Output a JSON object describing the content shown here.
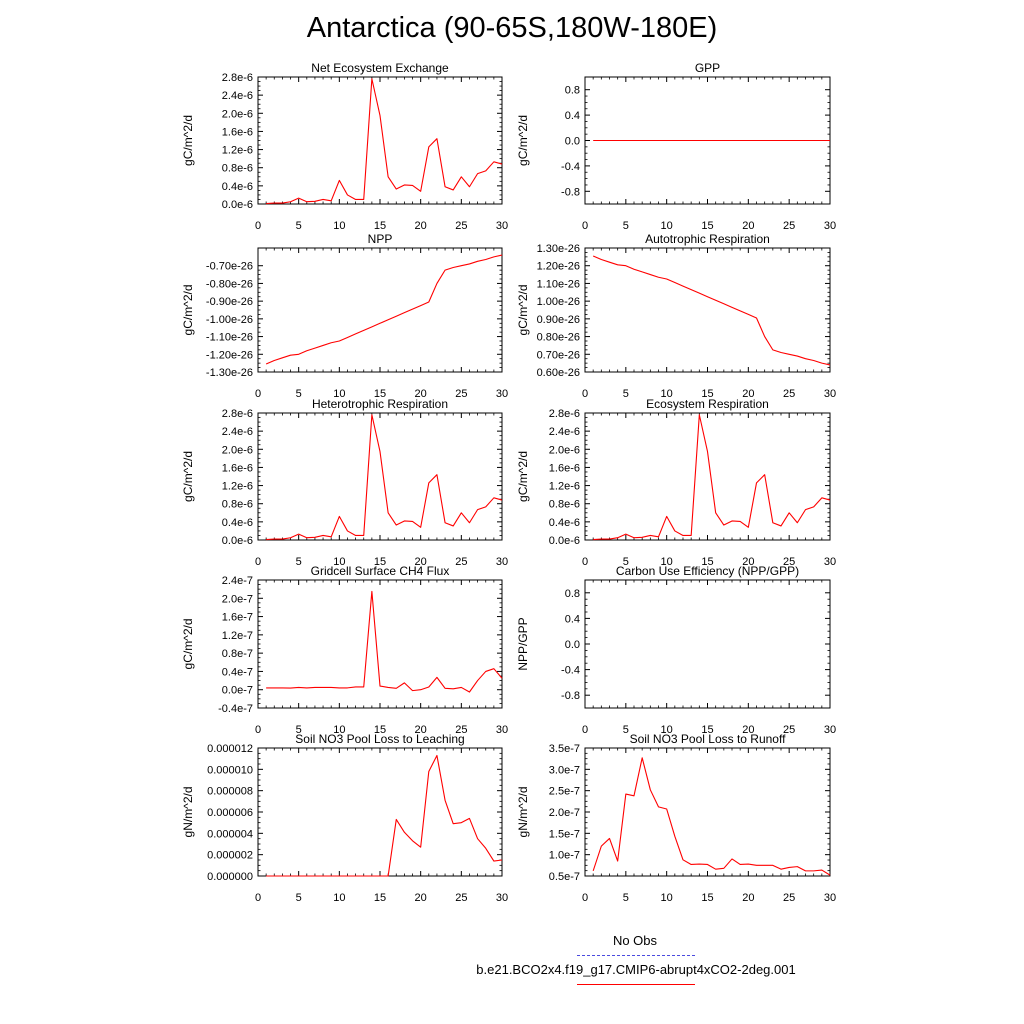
{
  "title": "Antarctica (90-65S,180W-180E)",
  "chart_data": [
    {
      "type": "line",
      "title": "Net Ecosystem Exchange",
      "ylabel": "gC/m^2/d",
      "xlim": [
        0,
        30
      ],
      "ylim": [
        0,
        2.8e-06
      ],
      "xticks": [
        0,
        5,
        10,
        15,
        20,
        25,
        30
      ],
      "yticks": [
        0,
        4e-07,
        8e-07,
        1.2e-06,
        1.6e-06,
        2e-06,
        2.4e-06,
        2.8e-06
      ],
      "yticklabels": [
        "0.0e-6",
        "0.4e-6",
        "0.8e-6",
        "1.2e-6",
        "1.6e-6",
        "2.0e-6",
        "2.4e-6",
        "2.8e-6"
      ],
      "x": [
        1,
        2,
        3,
        4,
        5,
        6,
        7,
        8,
        9,
        10,
        11,
        12,
        13,
        14,
        15,
        16,
        17,
        18,
        19,
        20,
        21,
        22,
        23,
        24,
        25,
        26,
        27,
        28,
        29,
        30
      ],
      "series": [
        {
          "values": [
            1e-08,
            2e-08,
            2e-08,
            5e-08,
            1.3e-07,
            5e-08,
            6e-08,
            1e-07,
            7e-08,
            5.2e-07,
            2e-07,
            1e-07,
            1e-07,
            2.76e-06,
            1.95e-06,
            6e-07,
            3.3e-07,
            4.2e-07,
            4.1e-07,
            2.8e-07,
            1.26e-06,
            1.44e-06,
            3.8e-07,
            3.1e-07,
            6e-07,
            3.8e-07,
            6.7e-07,
            7.3e-07,
            9.3e-07,
            8.8e-07
          ]
        }
      ]
    },
    {
      "type": "line",
      "title": "GPP",
      "ylabel": "gC/m^2/d",
      "xlim": [
        0,
        30
      ],
      "ylim": [
        -1,
        1
      ],
      "xticks": [
        0,
        5,
        10,
        15,
        20,
        25,
        30
      ],
      "yticks": [
        -0.8,
        -0.4,
        0,
        0.4,
        0.8
      ],
      "yticklabels": [
        "-0.8",
        "-0.4",
        "0.0",
        "0.4",
        "0.8"
      ],
      "x": [
        1,
        2,
        3,
        4,
        5,
        6,
        7,
        8,
        9,
        10,
        11,
        12,
        13,
        14,
        15,
        16,
        17,
        18,
        19,
        20,
        21,
        22,
        23,
        24,
        25,
        26,
        27,
        28,
        29,
        30
      ],
      "series": [
        {
          "values": [
            0,
            0,
            0,
            0,
            0,
            0,
            0,
            0,
            0,
            0,
            0,
            0,
            0,
            0,
            0,
            0,
            0,
            0,
            0,
            0,
            0,
            0,
            0,
            0,
            0,
            0,
            0,
            0,
            0,
            0
          ]
        }
      ]
    },
    {
      "type": "line",
      "title": "NPP",
      "ylabel": "gC/m^2/d",
      "xlim": [
        0,
        30
      ],
      "ylim": [
        -1.3e-26,
        -6e-27
      ],
      "xticks": [
        0,
        5,
        10,
        15,
        20,
        25,
        30
      ],
      "yticks": [
        -1.3e-26,
        -1.2e-26,
        -1.1e-26,
        -1e-26,
        -9e-27,
        -8e-27,
        -7e-27
      ],
      "yticklabels": [
        "-1.30e-26",
        "-1.20e-26",
        "-1.10e-26",
        "-1.00e-26",
        "-0.90e-26",
        "-0.80e-26",
        "-0.70e-26"
      ],
      "x": [
        1,
        2,
        3,
        4,
        5,
        6,
        7,
        8,
        9,
        10,
        11,
        12,
        13,
        14,
        15,
        16,
        17,
        18,
        19,
        20,
        21,
        22,
        23,
        24,
        25,
        26,
        27,
        28,
        29,
        30
      ],
      "series": [
        {
          "values": [
            -1.255e-26,
            -1.235e-26,
            -1.22e-26,
            -1.205e-26,
            -1.2e-26,
            -1.18e-26,
            -1.165e-26,
            -1.15e-26,
            -1.135e-26,
            -1.125e-26,
            -1.105e-26,
            -1.085e-26,
            -1.065e-26,
            -1.045e-26,
            -1.025e-26,
            -1.005e-26,
            -9.85e-27,
            -9.65e-27,
            -9.45e-27,
            -9.25e-27,
            -9.05e-27,
            -8e-27,
            -7.25e-27,
            -7.1e-27,
            -7e-27,
            -6.9e-27,
            -6.75e-27,
            -6.65e-27,
            -6.5e-27,
            -6.4e-27
          ]
        }
      ]
    },
    {
      "type": "line",
      "title": "Autotrophic Respiration",
      "ylabel": "gC/m^2/d",
      "xlim": [
        0,
        30
      ],
      "ylim": [
        6e-27,
        1.3e-26
      ],
      "xticks": [
        0,
        5,
        10,
        15,
        20,
        25,
        30
      ],
      "yticks": [
        6e-27,
        7e-27,
        8e-27,
        9e-27,
        1e-26,
        1.1e-26,
        1.2e-26,
        1.3e-26
      ],
      "yticklabels": [
        "0.60e-26",
        "0.70e-26",
        "0.80e-26",
        "0.90e-26",
        "1.00e-26",
        "1.10e-26",
        "1.20e-26",
        "1.30e-26"
      ],
      "x": [
        1,
        2,
        3,
        4,
        5,
        6,
        7,
        8,
        9,
        10,
        11,
        12,
        13,
        14,
        15,
        16,
        17,
        18,
        19,
        20,
        21,
        22,
        23,
        24,
        25,
        26,
        27,
        28,
        29,
        30
      ],
      "series": [
        {
          "values": [
            1.255e-26,
            1.235e-26,
            1.22e-26,
            1.205e-26,
            1.2e-26,
            1.18e-26,
            1.165e-26,
            1.15e-26,
            1.135e-26,
            1.125e-26,
            1.105e-26,
            1.085e-26,
            1.065e-26,
            1.045e-26,
            1.025e-26,
            1.005e-26,
            9.85e-27,
            9.65e-27,
            9.45e-27,
            9.25e-27,
            9.05e-27,
            8e-27,
            7.25e-27,
            7.1e-27,
            7e-27,
            6.9e-27,
            6.75e-27,
            6.65e-27,
            6.5e-27,
            6.4e-27
          ]
        }
      ]
    },
    {
      "type": "line",
      "title": "Heterotrophic Respiration",
      "ylabel": "gC/m^2/d",
      "xlim": [
        0,
        30
      ],
      "ylim": [
        0,
        2.8e-06
      ],
      "xticks": [
        0,
        5,
        10,
        15,
        20,
        25,
        30
      ],
      "yticks": [
        0,
        4e-07,
        8e-07,
        1.2e-06,
        1.6e-06,
        2e-06,
        2.4e-06,
        2.8e-06
      ],
      "yticklabels": [
        "0.0e-6",
        "0.4e-6",
        "0.8e-6",
        "1.2e-6",
        "1.6e-6",
        "2.0e-6",
        "2.4e-6",
        "2.8e-6"
      ],
      "x": [
        1,
        2,
        3,
        4,
        5,
        6,
        7,
        8,
        9,
        10,
        11,
        12,
        13,
        14,
        15,
        16,
        17,
        18,
        19,
        20,
        21,
        22,
        23,
        24,
        25,
        26,
        27,
        28,
        29,
        30
      ],
      "series": [
        {
          "values": [
            1e-08,
            2e-08,
            2e-08,
            5e-08,
            1.3e-07,
            5e-08,
            6e-08,
            1e-07,
            7e-08,
            5.2e-07,
            2e-07,
            1e-07,
            1e-07,
            2.76e-06,
            1.95e-06,
            6e-07,
            3.3e-07,
            4.2e-07,
            4.1e-07,
            2.8e-07,
            1.26e-06,
            1.44e-06,
            3.8e-07,
            3.1e-07,
            6e-07,
            3.8e-07,
            6.7e-07,
            7.3e-07,
            9.3e-07,
            8.8e-07
          ]
        }
      ]
    },
    {
      "type": "line",
      "title": "Ecosystem Respiration",
      "ylabel": "gC/m^2/d",
      "xlim": [
        0,
        30
      ],
      "ylim": [
        0,
        2.8e-06
      ],
      "xticks": [
        0,
        5,
        10,
        15,
        20,
        25,
        30
      ],
      "yticks": [
        0,
        4e-07,
        8e-07,
        1.2e-06,
        1.6e-06,
        2e-06,
        2.4e-06,
        2.8e-06
      ],
      "yticklabels": [
        "0.0e-6",
        "0.4e-6",
        "0.8e-6",
        "1.2e-6",
        "1.6e-6",
        "2.0e-6",
        "2.4e-6",
        "2.8e-6"
      ],
      "x": [
        1,
        2,
        3,
        4,
        5,
        6,
        7,
        8,
        9,
        10,
        11,
        12,
        13,
        14,
        15,
        16,
        17,
        18,
        19,
        20,
        21,
        22,
        23,
        24,
        25,
        26,
        27,
        28,
        29,
        30
      ],
      "series": [
        {
          "values": [
            1e-08,
            2e-08,
            2e-08,
            5e-08,
            1.3e-07,
            5e-08,
            6e-08,
            1e-07,
            7e-08,
            5.2e-07,
            2e-07,
            1e-07,
            1e-07,
            2.76e-06,
            1.95e-06,
            6e-07,
            3.3e-07,
            4.2e-07,
            4.1e-07,
            2.8e-07,
            1.26e-06,
            1.44e-06,
            3.8e-07,
            3.1e-07,
            6e-07,
            3.8e-07,
            6.7e-07,
            7.3e-07,
            9.3e-07,
            8.8e-07
          ]
        }
      ]
    },
    {
      "type": "line",
      "title": "Gridcell Surface CH4 Flux",
      "ylabel": "gC/m^2/d",
      "xlim": [
        0,
        30
      ],
      "ylim": [
        -4e-08,
        2.4e-07
      ],
      "xticks": [
        0,
        5,
        10,
        15,
        20,
        25,
        30
      ],
      "yticks": [
        -4e-08,
        0,
        4e-08,
        8e-08,
        1.2e-07,
        1.6e-07,
        2e-07,
        2.4e-07
      ],
      "yticklabels": [
        "-0.4e-7",
        "0.0e-7",
        "0.4e-7",
        "0.8e-7",
        "1.2e-7",
        "1.6e-7",
        "2.0e-7",
        "2.4e-7"
      ],
      "x": [
        1,
        2,
        3,
        4,
        5,
        6,
        7,
        8,
        9,
        10,
        11,
        12,
        13,
        14,
        15,
        16,
        17,
        18,
        19,
        20,
        21,
        22,
        23,
        24,
        25,
        26,
        27,
        28,
        29,
        30
      ],
      "series": [
        {
          "values": [
            4e-09,
            4e-09,
            4e-09,
            3.5e-09,
            5e-09,
            4e-09,
            5e-09,
            5e-09,
            5e-09,
            4e-09,
            4e-09,
            6e-09,
            6e-09,
            2.15e-07,
            8e-09,
            5e-09,
            3e-09,
            1.5e-08,
            -2e-09,
            0.0,
            6e-09,
            2.7e-08,
            3e-09,
            2e-09,
            5e-09,
            -5e-09,
            2e-08,
            4e-08,
            4.6e-08,
            2.5e-08
          ]
        }
      ]
    },
    {
      "type": "line",
      "title": "Carbon Use Efficiency (NPP/GPP)",
      "ylabel": "NPP/GPP",
      "xlim": [
        0,
        30
      ],
      "ylim": [
        -1,
        1
      ],
      "xticks": [
        0,
        5,
        10,
        15,
        20,
        25,
        30
      ],
      "yticks": [
        -0.8,
        -0.4,
        0,
        0.4,
        0.8
      ],
      "yticklabels": [
        "-0.8",
        "-0.4",
        "0.0",
        "0.4",
        "0.8"
      ],
      "x": [],
      "series": [
        {
          "values": []
        }
      ]
    },
    {
      "type": "line",
      "title": "Soil NO3 Pool Loss to Leaching",
      "ylabel": "gN/m^2/d",
      "xlim": [
        0,
        30
      ],
      "ylim": [
        0,
        1.2e-05
      ],
      "xticks": [
        0,
        5,
        10,
        15,
        20,
        25,
        30
      ],
      "yticks": [
        0,
        2e-06,
        4e-06,
        6e-06,
        8e-06,
        1e-05,
        1.2e-05
      ],
      "yticklabels": [
        "0.000000",
        "0.000002",
        "0.000004",
        "0.000006",
        "0.000008",
        "0.000010",
        "0.000012"
      ],
      "x": [
        1,
        2,
        3,
        4,
        5,
        6,
        7,
        8,
        9,
        10,
        11,
        12,
        13,
        14,
        15,
        16,
        17,
        18,
        19,
        20,
        21,
        22,
        23,
        24,
        25,
        26,
        27,
        28,
        29,
        30
      ],
      "series": [
        {
          "values": [
            0,
            0,
            0,
            0,
            0,
            0,
            0,
            0,
            0,
            0,
            0,
            0,
            0,
            0,
            0,
            0,
            5.3e-06,
            4.1e-06,
            3.3e-06,
            2.7e-06,
            9.8e-06,
            1.13e-05,
            7.1e-06,
            4.9e-06,
            5e-06,
            5.4e-06,
            3.5e-06,
            2.6e-06,
            1.4e-06,
            1.5e-06
          ]
        }
      ]
    },
    {
      "type": "line",
      "title": "Soil NO3 Pool Loss to Runoff",
      "ylabel": "gN/m^2/d",
      "xlim": [
        0,
        30
      ],
      "ylim": [
        5e-08,
        3.5e-07
      ],
      "xticks": [
        0,
        5,
        10,
        15,
        20,
        25,
        30
      ],
      "yticks": [
        5e-08,
        1e-07,
        1.5e-07,
        2e-07,
        2.5e-07,
        3e-07,
        3.5e-07
      ],
      "yticklabels": [
        "0.5e-7",
        "1.0e-7",
        "1.5e-7",
        "2.0e-7",
        "2.5e-7",
        "3.0e-7",
        "3.5e-7"
      ],
      "x": [
        1,
        2,
        3,
        4,
        5,
        6,
        7,
        8,
        9,
        10,
        11,
        12,
        13,
        14,
        15,
        16,
        17,
        18,
        19,
        20,
        21,
        22,
        23,
        24,
        25,
        26,
        27,
        28,
        29,
        30
      ],
      "series": [
        {
          "values": [
            6.2e-08,
            1.2e-07,
            1.38e-07,
            8.5e-08,
            2.42e-07,
            2.38e-07,
            3.27e-07,
            2.52e-07,
            2.12e-07,
            2.07e-07,
            1.43e-07,
            8.8e-08,
            7.7e-08,
            7.8e-08,
            7.7e-08,
            6.6e-08,
            6.8e-08,
            9e-08,
            7.7e-08,
            7.8e-08,
            7.5e-08,
            7.5e-08,
            7.5e-08,
            6.6e-08,
            7e-08,
            7.2e-08,
            6.2e-08,
            6.2e-08,
            6.4e-08,
            5.2e-08
          ]
        }
      ]
    }
  ],
  "legend": {
    "obs_label": "No Obs",
    "obs_color": "#4a4adf",
    "model_label": "b.e21.BCO2x4.f19_g17.CMIP6-abrupt4xCO2-2deg.001",
    "model_color": "#ff0000"
  },
  "colors": {
    "line": "#ff0000",
    "axis": "#000000"
  }
}
